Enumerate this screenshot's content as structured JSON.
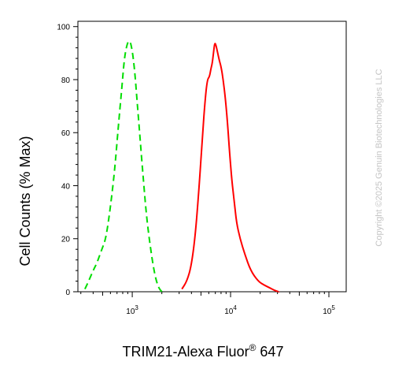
{
  "chart_data": {
    "type": "line",
    "xscale": "log",
    "xlim": [
      280,
      150000
    ],
    "ylim": [
      0,
      102
    ],
    "grid": false,
    "legend": "none",
    "ylabel": "Cell Counts (% Max)",
    "xlabel": "TRIM21-Alexa Fluor",
    "xlabel_superscript": "®",
    "xlabel_suffix": " 647",
    "watermark": "Copyright ©2025 Genuin Biotechnologies LLC",
    "yticks": [
      0,
      20,
      40,
      60,
      80,
      100
    ],
    "yticks_labels": [
      "0",
      "20",
      "40",
      "60",
      "80",
      "100"
    ],
    "xticks": [
      1000,
      10000,
      100000
    ],
    "xticks_base": [
      "10",
      "10",
      "10"
    ],
    "xticks_exp": [
      "3",
      "4",
      "5"
    ],
    "series": [
      {
        "color": "#00dd00",
        "style": "dashed",
        "x": [
          330,
          360,
          400,
          440,
          490,
          540,
          600,
          660,
          720,
          780,
          830,
          880,
          930,
          980,
          1050,
          1120,
          1200,
          1300,
          1400,
          1550,
          1700,
          1850,
          2000
        ],
        "y": [
          1,
          4,
          8,
          11,
          16,
          20,
          32,
          45,
          62,
          76,
          88,
          93,
          95,
          93,
          85,
          72,
          58,
          42,
          28,
          15,
          6,
          1.5,
          0
        ]
      },
      {
        "color": "#ff0000",
        "style": "solid",
        "x": [
          3200,
          3600,
          4000,
          4400,
          4800,
          5200,
          5500,
          5800,
          6100,
          6300,
          6500,
          6700,
          6900,
          7100,
          7400,
          7700,
          8000,
          8400,
          8800,
          9300,
          9800,
          10300,
          10900,
          11500,
          12500,
          14000,
          16000,
          19000,
          22000,
          25000,
          28000,
          31000
        ],
        "y": [
          1,
          4,
          10,
          22,
          40,
          60,
          72,
          80,
          81,
          84,
          86,
          90,
          94,
          93,
          90,
          87,
          85,
          80,
          74,
          64,
          52,
          42,
          34,
          26,
          20,
          14,
          8,
          4,
          2.5,
          1.5,
          0.5,
          0
        ]
      }
    ]
  }
}
